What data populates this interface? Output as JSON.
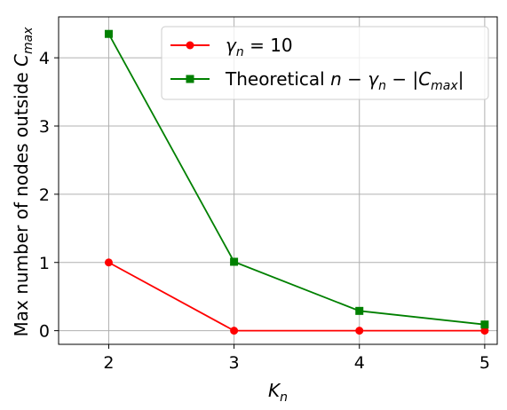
{
  "chart_data": {
    "type": "line",
    "x": [
      2,
      3,
      4,
      5
    ],
    "xlim": [
      1.6,
      5.1
    ],
    "ylim": [
      -0.2,
      4.6
    ],
    "xticks": [
      2,
      3,
      4,
      5
    ],
    "yticks": [
      0,
      1,
      2,
      3,
      4
    ],
    "grid": true,
    "legend_position": "top-right",
    "xlabel": {
      "base": "K",
      "sub": "n"
    },
    "ylabel": {
      "text": "Max number of nodes outside ",
      "base": "C",
      "sub": "max"
    },
    "series": [
      {
        "legend": {
          "base": "γ",
          "sub": "n",
          "rest": " = 10"
        },
        "color": "#ff0000",
        "marker": "circle",
        "values": [
          1,
          0,
          0,
          0
        ]
      },
      {
        "legend": {
          "prefix": "Theoretical ",
          "p1": "n",
          "p2": " − ",
          "p3": "γ",
          "p3sub": "n",
          "p4": " − |",
          "p5": "C",
          "p5sub": "max",
          "p6": "|"
        },
        "color": "#008000",
        "marker": "square",
        "values": [
          4.35,
          1.01,
          0.29,
          0.09
        ]
      }
    ]
  }
}
